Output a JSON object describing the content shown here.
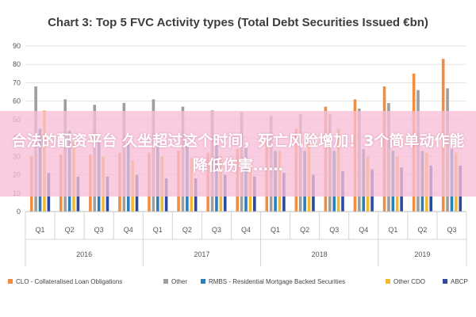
{
  "overlay": {
    "text": "合法的配资平台 久坐超过这个时间，死亡风险增加！3个简单动作能降低伤害……"
  },
  "colors": {
    "CLO": "#f28c3f",
    "Other": "#9e9e9e",
    "RMBS": "#2b7fb8",
    "OtherCDO": "#f4b731",
    "ABCP": "#2e4aa0"
  },
  "chart_data": {
    "type": "bar",
    "title": "Chart 3: Top 5 FVC Activity types (Total Debt Securities Issued €bn)",
    "xlabel": "",
    "ylabel": "",
    "ylim": [
      0,
      90
    ],
    "yticks": [
      0,
      10,
      20,
      30,
      40,
      50,
      60,
      70,
      80,
      90
    ],
    "grid": true,
    "legend_position": "bottom",
    "categories": [
      "Q1",
      "Q2",
      "Q3",
      "Q4",
      "Q1",
      "Q2",
      "Q3",
      "Q4",
      "Q1",
      "Q2",
      "Q3",
      "Q4",
      "Q1",
      "Q2",
      "Q3"
    ],
    "years": [
      {
        "label": "2016",
        "quarters": 4
      },
      {
        "label": "2017",
        "quarters": 4
      },
      {
        "label": "2018",
        "quarters": 4
      },
      {
        "label": "2019",
        "quarters": 3
      }
    ],
    "series": [
      {
        "name": "CLO - Collateralised Loan Obligations",
        "key": "CLO",
        "values": [
          30,
          31,
          31,
          32,
          32,
          33,
          32,
          34,
          42,
          45,
          57,
          61,
          68,
          75,
          83
        ]
      },
      {
        "name": "Other",
        "key": "Other",
        "values": [
          68,
          61,
          58,
          59,
          61,
          57,
          55,
          54,
          52,
          53,
          53,
          56,
          59,
          66,
          67
        ]
      },
      {
        "name": "RMBS - Residential Mortgage Backed Securities",
        "key": "RMBS",
        "values": [
          45,
          44,
          38,
          38,
          37,
          36,
          36,
          35,
          33,
          33,
          33,
          34,
          33,
          33,
          34
        ]
      },
      {
        "name": "Other CDO",
        "key": "OtherCDO",
        "values": [
          55,
          38,
          30,
          28,
          30,
          29,
          30,
          27,
          33,
          38,
          45,
          30,
          30,
          32,
          32
        ]
      },
      {
        "name": "ABCP",
        "key": "ABCP",
        "values": [
          21,
          19,
          19,
          20,
          18,
          18,
          20,
          19,
          21,
          20,
          22,
          23,
          24,
          25,
          25
        ]
      }
    ]
  }
}
